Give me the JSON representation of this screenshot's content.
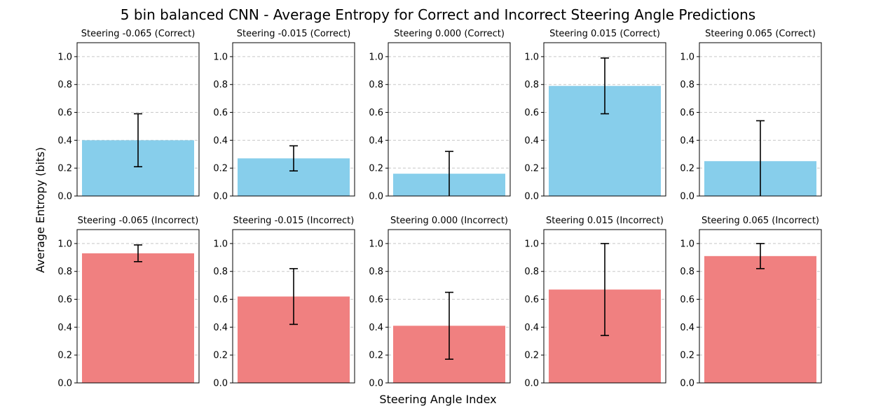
{
  "figure": {
    "title": "5 bin balanced CNN - Average Entropy for Correct and Incorrect Steering Angle Predictions",
    "xlabel": "Steering Angle Index",
    "ylabel": "Average Entropy (bits)"
  },
  "chart_data": [
    {
      "type": "bar",
      "title": "Steering -0.065 (Correct)",
      "values": [
        0.4
      ],
      "error": [
        0.19
      ],
      "color": "#87ceeb",
      "ylim": [
        0,
        1.1
      ],
      "yticks": [
        "0.0",
        "0.2",
        "0.4",
        "0.6",
        "0.8",
        "1.0"
      ],
      "grid": "y"
    },
    {
      "type": "bar",
      "title": "Steering -0.015 (Correct)",
      "values": [
        0.27
      ],
      "error": [
        0.09
      ],
      "color": "#87ceeb",
      "ylim": [
        0,
        1.1
      ],
      "yticks": [
        "0.0",
        "0.2",
        "0.4",
        "0.6",
        "0.8",
        "1.0"
      ],
      "grid": "y"
    },
    {
      "type": "bar",
      "title": "Steering 0.000 (Correct)",
      "values": [
        0.16
      ],
      "error": [
        0.16
      ],
      "color": "#87ceeb",
      "ylim": [
        0,
        1.1
      ],
      "yticks": [
        "0.0",
        "0.2",
        "0.4",
        "0.6",
        "0.8",
        "1.0"
      ],
      "grid": "y"
    },
    {
      "type": "bar",
      "title": "Steering 0.015 (Correct)",
      "values": [
        0.79
      ],
      "error": [
        0.2
      ],
      "color": "#87ceeb",
      "ylim": [
        0,
        1.1
      ],
      "yticks": [
        "0.0",
        "0.2",
        "0.4",
        "0.6",
        "0.8",
        "1.0"
      ],
      "grid": "y"
    },
    {
      "type": "bar",
      "title": "Steering 0.065 (Correct)",
      "values": [
        0.25
      ],
      "error": [
        0.29
      ],
      "color": "#87ceeb",
      "ylim": [
        0,
        1.1
      ],
      "yticks": [
        "0.0",
        "0.2",
        "0.4",
        "0.6",
        "0.8",
        "1.0"
      ],
      "grid": "y"
    },
    {
      "type": "bar",
      "title": "Steering -0.065 (Incorrect)",
      "values": [
        0.93
      ],
      "error": [
        0.06
      ],
      "color": "#f08080",
      "ylim": [
        0,
        1.1
      ],
      "yticks": [
        "0.0",
        "0.2",
        "0.4",
        "0.6",
        "0.8",
        "1.0"
      ],
      "grid": "y"
    },
    {
      "type": "bar",
      "title": "Steering -0.015 (Incorrect)",
      "values": [
        0.62
      ],
      "error": [
        0.2
      ],
      "color": "#f08080",
      "ylim": [
        0,
        1.1
      ],
      "yticks": [
        "0.0",
        "0.2",
        "0.4",
        "0.6",
        "0.8",
        "1.0"
      ],
      "grid": "y"
    },
    {
      "type": "bar",
      "title": "Steering 0.000 (Incorrect)",
      "values": [
        0.41
      ],
      "error": [
        0.24
      ],
      "color": "#f08080",
      "ylim": [
        0,
        1.1
      ],
      "yticks": [
        "0.0",
        "0.2",
        "0.4",
        "0.6",
        "0.8",
        "1.0"
      ],
      "grid": "y"
    },
    {
      "type": "bar",
      "title": "Steering 0.015 (Incorrect)",
      "values": [
        0.67
      ],
      "error": [
        0.33
      ],
      "color": "#f08080",
      "ylim": [
        0,
        1.1
      ],
      "yticks": [
        "0.0",
        "0.2",
        "0.4",
        "0.6",
        "0.8",
        "1.0"
      ],
      "grid": "y"
    },
    {
      "type": "bar",
      "title": "Steering 0.065 (Incorrect)",
      "values": [
        0.91
      ],
      "error": [
        0.09
      ],
      "color": "#f08080",
      "ylim": [
        0,
        1.1
      ],
      "yticks": [
        "0.0",
        "0.2",
        "0.4",
        "0.6",
        "0.8",
        "1.0"
      ],
      "grid": "y"
    }
  ]
}
